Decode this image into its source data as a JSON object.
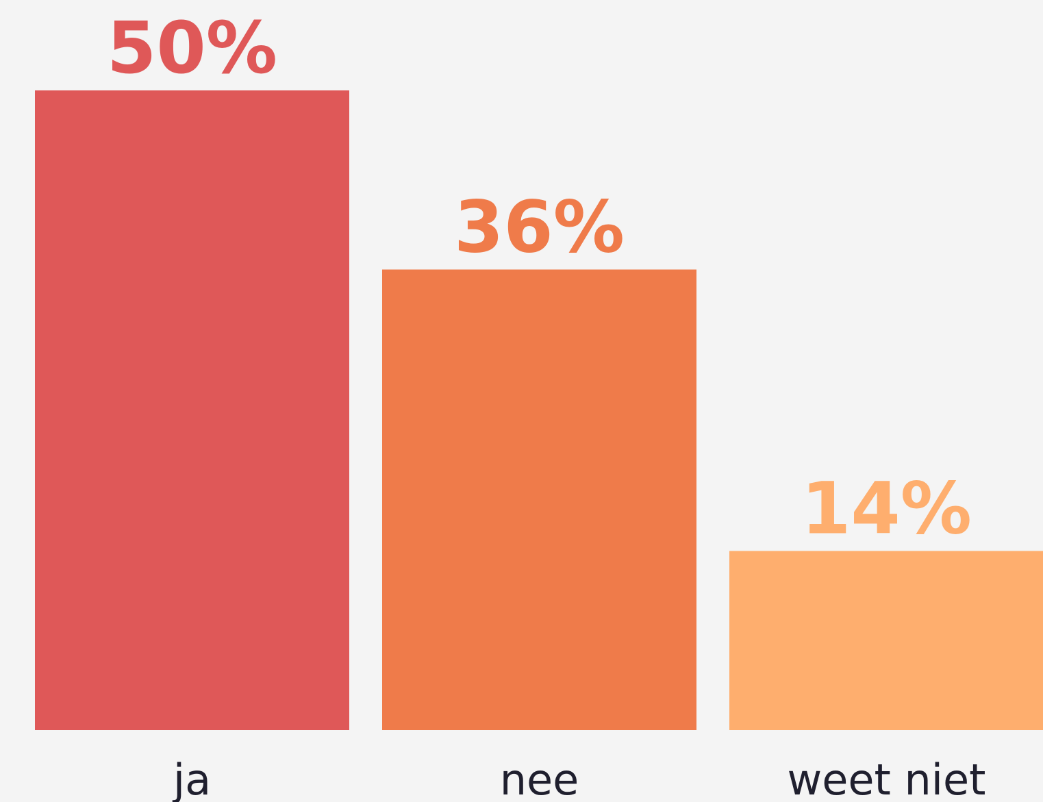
{
  "chart_data": {
    "type": "bar",
    "categories": [
      "ja",
      "nee",
      "weet niet"
    ],
    "values": [
      50,
      36,
      14
    ],
    "value_labels": [
      "50%",
      "36%",
      "14%"
    ],
    "colors": [
      "#df5858",
      "#ef7b4a",
      "#feae6e"
    ]
  }
}
